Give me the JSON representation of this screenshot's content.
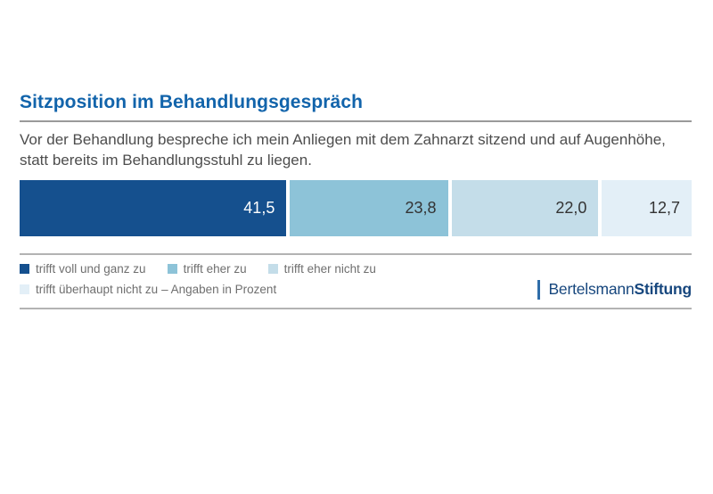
{
  "page": {
    "background": "#ffffff"
  },
  "header": {
    "title": "Sitzposition im Behandlungsgespräch",
    "title_color": "#1264ab",
    "subtitle": "Vor der Behandlung bespreche ich mein Anliegen mit dem Zahnarzt sitzend und auf Augenhöhe, statt bereits im Behandlungsstuhl zu liegen."
  },
  "chart_data": {
    "type": "bar",
    "variant": "horizontal-stacked",
    "title": "Sitzposition im Behandlungsgespräch",
    "statement": "Vor der Behandlung bespreche ich mein Anliegen mit dem Zahnarzt sitzend und auf Augenhöhe, statt bereits im Behandlungsstuhl zu liegen.",
    "unit": "Prozent",
    "categories": [
      "trifft voll und ganz zu",
      "trifft eher zu",
      "trifft eher nicht zu",
      "trifft überhaupt nicht zu"
    ],
    "values": [
      41.5,
      23.8,
      22.0,
      12.7
    ],
    "value_labels": [
      "41,5",
      "23,8",
      "22,0",
      "12,7"
    ],
    "colors": [
      "#15508e",
      "#8dc3d8",
      "#c4dde9",
      "#e3eff7"
    ],
    "label_colors": [
      "#ffffff",
      "#333333",
      "#333333",
      "#333333"
    ],
    "xlim": [
      0,
      100
    ],
    "grid": false,
    "legend_position": "bottom"
  },
  "legend": {
    "note": "– Angaben in Prozent"
  },
  "footer": {
    "brand_regular": "Bertelsmann",
    "brand_bold": "Stiftung",
    "brand_color": "#17477e"
  }
}
